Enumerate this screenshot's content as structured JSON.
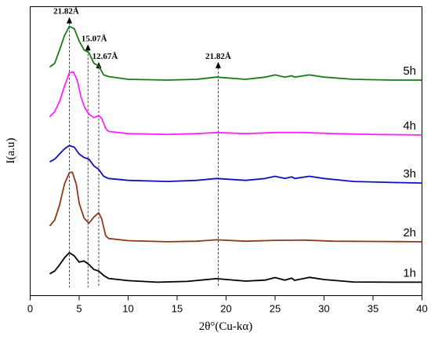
{
  "chart_data": {
    "type": "line",
    "xlabel": "2θ°(Cu-kα)",
    "ylabel": "I(a.u)",
    "xlim": [
      0,
      40
    ],
    "ylim": [
      0,
      100
    ],
    "xticks": [
      0,
      5,
      10,
      15,
      20,
      25,
      30,
      35,
      40
    ],
    "xtick_labels": [
      "0",
      "5",
      "10",
      "15",
      "20",
      "25",
      "30",
      "35",
      "40"
    ],
    "grid": false,
    "legend": "none; series names printed at right end of each trace",
    "series": [
      {
        "name": "1h",
        "color": "#000000",
        "points": [
          [
            2,
            5.0
          ],
          [
            2.5,
            6.0
          ],
          [
            3,
            8.3
          ],
          [
            3.5,
            10.9
          ],
          [
            4,
            12.8
          ],
          [
            4.5,
            11.6
          ],
          [
            5,
            9.3
          ],
          [
            5.5,
            9.7
          ],
          [
            6,
            8.4
          ],
          [
            6.5,
            6.6
          ],
          [
            7,
            6.0
          ],
          [
            7.5,
            4.4
          ],
          [
            8,
            3.3
          ],
          [
            10,
            2.5
          ],
          [
            13,
            1.9
          ],
          [
            16,
            2.2
          ],
          [
            19,
            3.2
          ],
          [
            22,
            2.3
          ],
          [
            24,
            2.7
          ],
          [
            25,
            3.6
          ],
          [
            26,
            2.7
          ],
          [
            26.7,
            3.4
          ],
          [
            27,
            2.6
          ],
          [
            28.5,
            3.7
          ],
          [
            30,
            2.9
          ],
          [
            33,
            2.0
          ],
          [
            37,
            1.9
          ],
          [
            40,
            1.9
          ]
        ]
      },
      {
        "name": "2h",
        "color": "#8b3a1a",
        "points": [
          [
            2,
            22.6
          ],
          [
            2.5,
            24.8
          ],
          [
            3,
            30.3
          ],
          [
            3.5,
            38.1
          ],
          [
            4,
            42.2
          ],
          [
            4.3,
            42.4
          ],
          [
            4.7,
            38.0
          ],
          [
            5,
            31.0
          ],
          [
            5.5,
            25.5
          ],
          [
            6,
            23.6
          ],
          [
            6.5,
            25.9
          ],
          [
            7,
            27.5
          ],
          [
            7.3,
            25.2
          ],
          [
            7.7,
            19.1
          ],
          [
            8,
            18.0
          ],
          [
            10,
            17.2
          ],
          [
            14,
            16.8
          ],
          [
            17,
            17.0
          ],
          [
            19,
            17.5
          ],
          [
            22,
            17.0
          ],
          [
            25,
            17.3
          ],
          [
            28,
            17.4
          ],
          [
            31,
            17.0
          ],
          [
            35,
            16.9
          ],
          [
            40,
            16.8
          ]
        ]
      },
      {
        "name": "3h",
        "color": "#1010c0",
        "points": [
          [
            2,
            46.2
          ],
          [
            2.5,
            47.2
          ],
          [
            3,
            49.1
          ],
          [
            3.5,
            51.0
          ],
          [
            4,
            52.2
          ],
          [
            4.5,
            51.6
          ],
          [
            5,
            49.1
          ],
          [
            5.5,
            47.8
          ],
          [
            6,
            47.2
          ],
          [
            6.5,
            44.7
          ],
          [
            7,
            43.4
          ],
          [
            7.5,
            40.9
          ],
          [
            8,
            40.1
          ],
          [
            10,
            39.4
          ],
          [
            14,
            39.0
          ],
          [
            17,
            39.4
          ],
          [
            19,
            40.1
          ],
          [
            22,
            39.4
          ],
          [
            24,
            40.1
          ],
          [
            25,
            40.9
          ],
          [
            26,
            40.1
          ],
          [
            26.7,
            40.7
          ],
          [
            27,
            40.1
          ],
          [
            28.5,
            40.9
          ],
          [
            30,
            40.1
          ],
          [
            33,
            39.0
          ],
          [
            37,
            38.6
          ],
          [
            40,
            38.4
          ]
        ]
      },
      {
        "name": "4h",
        "color": "#ff22ff",
        "points": [
          [
            2,
            62.8
          ],
          [
            2.5,
            64.7
          ],
          [
            3,
            68.4
          ],
          [
            3.5,
            74.1
          ],
          [
            4,
            79.0
          ],
          [
            4.4,
            79.3
          ],
          [
            4.8,
            76.3
          ],
          [
            5.2,
            69.9
          ],
          [
            5.6,
            65.9
          ],
          [
            6,
            63.8
          ],
          [
            6.5,
            62.5
          ],
          [
            7,
            63.2
          ],
          [
            7.3,
            62.2
          ],
          [
            7.7,
            58.5
          ],
          [
            8,
            57.4
          ],
          [
            10,
            56.6
          ],
          [
            14,
            56.3
          ],
          [
            17,
            56.6
          ],
          [
            19,
            57.0
          ],
          [
            22,
            56.6
          ],
          [
            25,
            57.0
          ],
          [
            28,
            57.0
          ],
          [
            31,
            56.6
          ],
          [
            35,
            56.3
          ],
          [
            40,
            56.1
          ]
        ]
      },
      {
        "name": "5h",
        "color": "#1a7a1a",
        "points": [
          [
            2,
            81.1
          ],
          [
            2.5,
            82.5
          ],
          [
            3,
            87.4
          ],
          [
            3.5,
            92.7
          ],
          [
            4,
            96.1
          ],
          [
            4.5,
            95.2
          ],
          [
            5,
            90.7
          ],
          [
            5.5,
            87.4
          ],
          [
            6,
            86.4
          ],
          [
            6.5,
            82.5
          ],
          [
            7,
            81.5
          ],
          [
            7.5,
            78.2
          ],
          [
            8,
            77.6
          ],
          [
            10,
            76.6
          ],
          [
            14,
            76.3
          ],
          [
            17,
            76.6
          ],
          [
            19,
            77.4
          ],
          [
            22,
            76.6
          ],
          [
            24,
            77.4
          ],
          [
            25,
            78.2
          ],
          [
            26,
            77.4
          ],
          [
            26.7,
            77.9
          ],
          [
            27,
            77.4
          ],
          [
            28.5,
            78.2
          ],
          [
            30,
            77.4
          ],
          [
            33,
            76.6
          ],
          [
            37,
            76.3
          ],
          [
            40,
            76.3
          ]
        ]
      }
    ],
    "annotations": [
      {
        "label": "21.82Å",
        "x": 4.0,
        "y_top": 99.5,
        "y_bottom": 0,
        "label_dx": -4
      },
      {
        "label": "15.07Å",
        "x": 5.9,
        "y_top": 89.5,
        "y_bottom": 0,
        "label_dx": 8
      },
      {
        "label": "12.67Å",
        "x": 7.0,
        "y_top": 83.0,
        "y_bottom": 0,
        "label_dx": 8
      },
      {
        "label": "21.82Å",
        "x": 19.2,
        "y_top": 83.0,
        "y_bottom": 0,
        "label_dx": 0
      }
    ]
  }
}
